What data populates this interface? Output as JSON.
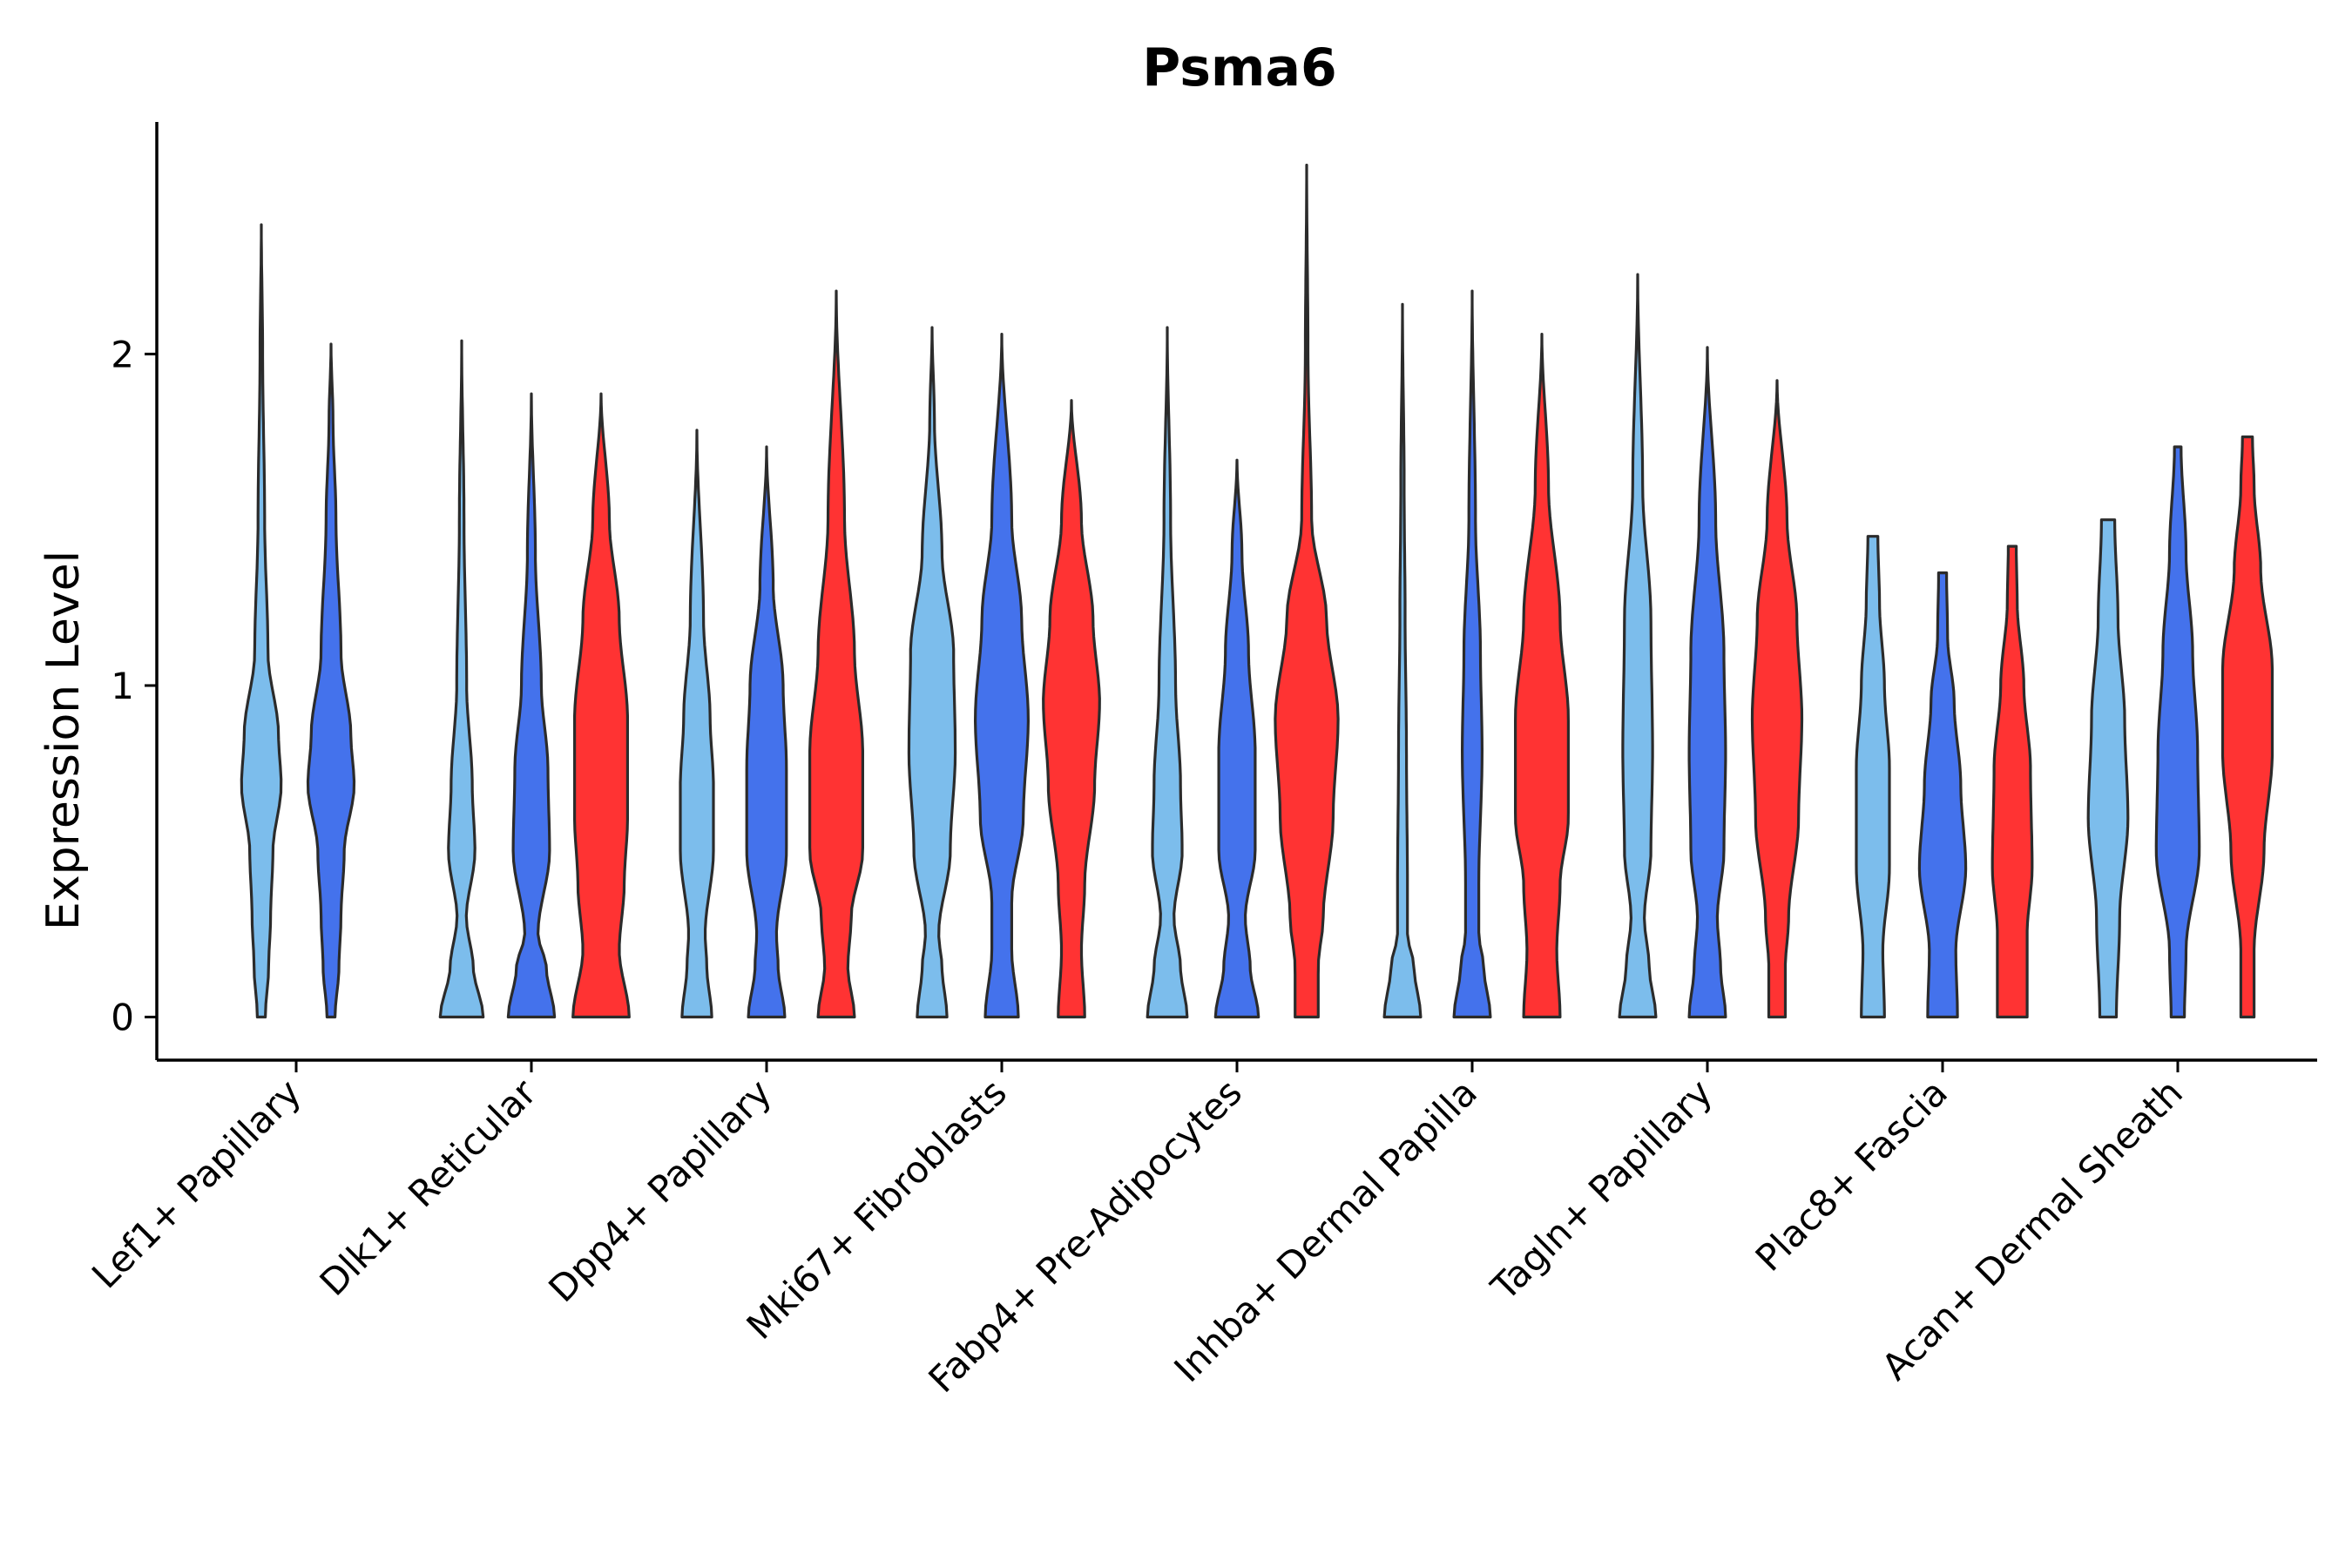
{
  "chart_data": {
    "type": "violin",
    "title": "Psma6",
    "xlabel": "",
    "ylabel": "Expression Level",
    "ylim": [
      -0.13,
      2.7
    ],
    "yticks": [
      0,
      1,
      2
    ],
    "colors": {
      "light_blue": "#7CBDEC",
      "blue": "#4472EC",
      "red": "#FF3333",
      "outline": "#2b2b2b"
    },
    "categories": [
      "Lef1+ Papillary",
      "Dlk1+ Reticular",
      "Dpp4+ Papillary",
      "Mki67+ Fibroblasts",
      "Fabp4+ Pre-Adipocytes",
      "Inhba+ Dermal Papilla",
      "Tagln+ Papillary",
      "Plac8+ Fascia",
      "Acan+ Dermal Sheath"
    ],
    "violins": [
      {
        "category": "Lef1+ Papillary",
        "color": "light_blue",
        "max": 2.39,
        "profile": [
          [
            0,
            0.12
          ],
          [
            0.15,
            0.22
          ],
          [
            0.3,
            0.28
          ],
          [
            0.5,
            0.35
          ],
          [
            0.7,
            0.6
          ],
          [
            0.85,
            0.52
          ],
          [
            1.1,
            0.2
          ],
          [
            1.5,
            0.1
          ],
          [
            2.0,
            0.04
          ],
          [
            2.39,
            0.0
          ]
        ]
      },
      {
        "category": "Lef1+ Papillary",
        "color": "blue",
        "max": 2.03,
        "profile": [
          [
            0,
            0.12
          ],
          [
            0.15,
            0.24
          ],
          [
            0.3,
            0.3
          ],
          [
            0.5,
            0.4
          ],
          [
            0.7,
            0.7
          ],
          [
            0.85,
            0.6
          ],
          [
            1.1,
            0.3
          ],
          [
            1.5,
            0.15
          ],
          [
            1.8,
            0.06
          ],
          [
            2.03,
            0.0
          ]
        ]
      },
      {
        "category": "Dlk1+ Reticular",
        "color": "light_blue",
        "max": 2.04,
        "profile": [
          [
            0,
            0.65
          ],
          [
            0.15,
            0.35
          ],
          [
            0.3,
            0.14
          ],
          [
            0.5,
            0.4
          ],
          [
            0.7,
            0.32
          ],
          [
            1.0,
            0.15
          ],
          [
            1.5,
            0.07
          ],
          [
            2.04,
            0.0
          ]
        ]
      },
      {
        "category": "Dlk1+ Reticular",
        "color": "blue",
        "max": 1.88,
        "profile": [
          [
            0,
            0.7
          ],
          [
            0.15,
            0.45
          ],
          [
            0.25,
            0.2
          ],
          [
            0.5,
            0.55
          ],
          [
            0.75,
            0.5
          ],
          [
            1.0,
            0.3
          ],
          [
            1.4,
            0.12
          ],
          [
            1.88,
            0.0
          ]
        ]
      },
      {
        "category": "Dlk1+ Reticular",
        "color": "red",
        "max": 1.88,
        "profile": [
          [
            0,
            0.85
          ],
          [
            0.2,
            0.55
          ],
          [
            0.4,
            0.7
          ],
          [
            0.6,
            0.8
          ],
          [
            0.9,
            0.8
          ],
          [
            1.2,
            0.55
          ],
          [
            1.5,
            0.25
          ],
          [
            1.88,
            0.0
          ]
        ]
      },
      {
        "category": "Dpp4+ Papillary",
        "color": "light_blue",
        "max": 1.77,
        "profile": [
          [
            0,
            0.45
          ],
          [
            0.15,
            0.3
          ],
          [
            0.25,
            0.25
          ],
          [
            0.5,
            0.5
          ],
          [
            0.7,
            0.5
          ],
          [
            0.9,
            0.4
          ],
          [
            1.2,
            0.2
          ],
          [
            1.77,
            0.0
          ]
        ]
      },
      {
        "category": "Dpp4+ Papillary",
        "color": "blue",
        "max": 1.72,
        "profile": [
          [
            0,
            0.55
          ],
          [
            0.15,
            0.35
          ],
          [
            0.25,
            0.3
          ],
          [
            0.5,
            0.6
          ],
          [
            0.75,
            0.6
          ],
          [
            1.0,
            0.5
          ],
          [
            1.3,
            0.2
          ],
          [
            1.72,
            0.0
          ]
        ]
      },
      {
        "category": "Dpp4+ Papillary",
        "color": "red",
        "max": 2.19,
        "profile": [
          [
            0,
            0.55
          ],
          [
            0.15,
            0.35
          ],
          [
            0.3,
            0.45
          ],
          [
            0.5,
            0.8
          ],
          [
            0.8,
            0.8
          ],
          [
            1.1,
            0.55
          ],
          [
            1.5,
            0.25
          ],
          [
            2.19,
            0.0
          ]
        ]
      },
      {
        "category": "Mki67+ Fibroblasts",
        "color": "light_blue",
        "max": 2.08,
        "profile": [
          [
            0,
            0.45
          ],
          [
            0.15,
            0.3
          ],
          [
            0.25,
            0.2
          ],
          [
            0.5,
            0.55
          ],
          [
            0.8,
            0.7
          ],
          [
            1.1,
            0.65
          ],
          [
            1.4,
            0.3
          ],
          [
            1.8,
            0.07
          ],
          [
            2.08,
            0.0
          ]
        ]
      },
      {
        "category": "Mki67+ Fibroblasts",
        "color": "blue",
        "max": 2.06,
        "profile": [
          [
            0,
            0.5
          ],
          [
            0.2,
            0.3
          ],
          [
            0.35,
            0.3
          ],
          [
            0.6,
            0.65
          ],
          [
            0.9,
            0.8
          ],
          [
            1.2,
            0.6
          ],
          [
            1.5,
            0.3
          ],
          [
            2.06,
            0.0
          ]
        ]
      },
      {
        "category": "Mki67+ Fibroblasts",
        "color": "red",
        "max": 1.86,
        "profile": [
          [
            0,
            0.4
          ],
          [
            0.2,
            0.3
          ],
          [
            0.4,
            0.4
          ],
          [
            0.7,
            0.7
          ],
          [
            0.95,
            0.85
          ],
          [
            1.2,
            0.65
          ],
          [
            1.5,
            0.3
          ],
          [
            1.86,
            0.0
          ]
        ]
      },
      {
        "category": "Fabp4+ Pre-Adipocytes",
        "color": "light_blue",
        "max": 2.08,
        "profile": [
          [
            0,
            0.6
          ],
          [
            0.15,
            0.4
          ],
          [
            0.3,
            0.2
          ],
          [
            0.5,
            0.45
          ],
          [
            0.7,
            0.4
          ],
          [
            1.0,
            0.25
          ],
          [
            1.5,
            0.1
          ],
          [
            2.08,
            0.0
          ]
        ]
      },
      {
        "category": "Fabp4+ Pre-Adipocytes",
        "color": "blue",
        "max": 1.68,
        "profile": [
          [
            0,
            0.65
          ],
          [
            0.15,
            0.4
          ],
          [
            0.3,
            0.25
          ],
          [
            0.5,
            0.55
          ],
          [
            0.8,
            0.55
          ],
          [
            1.1,
            0.35
          ],
          [
            1.4,
            0.15
          ],
          [
            1.68,
            0.0
          ]
        ]
      },
      {
        "category": "Fabp4+ Pre-Adipocytes",
        "color": "red",
        "max": 2.57,
        "profile": [
          [
            0,
            0.35
          ],
          [
            0.15,
            0.35
          ],
          [
            0.3,
            0.5
          ],
          [
            0.6,
            0.8
          ],
          [
            0.9,
            0.95
          ],
          [
            1.2,
            0.6
          ],
          [
            1.5,
            0.15
          ],
          [
            2.0,
            0.04
          ],
          [
            2.57,
            0.0
          ]
        ]
      },
      {
        "category": "Inhba+ Dermal Papilla",
        "color": "light_blue",
        "max": 2.15,
        "profile": [
          [
            0,
            0.55
          ],
          [
            0.15,
            0.35
          ],
          [
            0.25,
            0.15
          ],
          [
            0.4,
            0.15
          ],
          [
            0.8,
            0.12
          ],
          [
            1.2,
            0.08
          ],
          [
            1.6,
            0.05
          ],
          [
            2.15,
            0.0
          ]
        ]
      },
      {
        "category": "Inhba+ Dermal Papilla",
        "color": "blue",
        "max": 2.19,
        "profile": [
          [
            0,
            0.55
          ],
          [
            0.15,
            0.35
          ],
          [
            0.25,
            0.2
          ],
          [
            0.4,
            0.2
          ],
          [
            0.8,
            0.3
          ],
          [
            1.1,
            0.25
          ],
          [
            1.5,
            0.1
          ],
          [
            2.19,
            0.0
          ]
        ]
      },
      {
        "category": "Inhba+ Dermal Papilla",
        "color": "red",
        "max": 2.06,
        "profile": [
          [
            0,
            0.55
          ],
          [
            0.2,
            0.45
          ],
          [
            0.4,
            0.55
          ],
          [
            0.6,
            0.8
          ],
          [
            0.9,
            0.8
          ],
          [
            1.2,
            0.55
          ],
          [
            1.6,
            0.2
          ],
          [
            2.06,
            0.0
          ]
        ]
      },
      {
        "category": "Tagln+ Papillary",
        "color": "light_blue",
        "max": 2.24,
        "profile": [
          [
            0,
            0.55
          ],
          [
            0.15,
            0.35
          ],
          [
            0.3,
            0.2
          ],
          [
            0.5,
            0.4
          ],
          [
            0.8,
            0.45
          ],
          [
            1.2,
            0.4
          ],
          [
            1.6,
            0.15
          ],
          [
            2.24,
            0.0
          ]
        ]
      },
      {
        "category": "Tagln+ Papillary",
        "color": "blue",
        "max": 2.02,
        "profile": [
          [
            0,
            0.55
          ],
          [
            0.15,
            0.4
          ],
          [
            0.3,
            0.3
          ],
          [
            0.5,
            0.5
          ],
          [
            0.8,
            0.55
          ],
          [
            1.1,
            0.5
          ],
          [
            1.5,
            0.25
          ],
          [
            2.02,
            0.0
          ]
        ]
      },
      {
        "category": "Tagln+ Papillary",
        "color": "red",
        "max": 1.92,
        "profile": [
          [
            0,
            0.25
          ],
          [
            0.15,
            0.25
          ],
          [
            0.3,
            0.35
          ],
          [
            0.6,
            0.65
          ],
          [
            0.9,
            0.75
          ],
          [
            1.2,
            0.6
          ],
          [
            1.5,
            0.3
          ],
          [
            1.92,
            0.0
          ]
        ]
      },
      {
        "category": "Plac8+ Fascia",
        "color": "light_blue",
        "max": 1.45,
        "profile": [
          [
            0,
            0.35
          ],
          [
            0.2,
            0.3
          ],
          [
            0.45,
            0.5
          ],
          [
            0.75,
            0.5
          ],
          [
            1.0,
            0.35
          ],
          [
            1.25,
            0.2
          ],
          [
            1.45,
            0.15
          ]
        ]
      },
      {
        "category": "Plac8+ Fascia",
        "color": "blue",
        "max": 1.34,
        "profile": [
          [
            0,
            0.45
          ],
          [
            0.2,
            0.4
          ],
          [
            0.45,
            0.7
          ],
          [
            0.7,
            0.55
          ],
          [
            0.95,
            0.35
          ],
          [
            1.15,
            0.15
          ],
          [
            1.34,
            0.12
          ]
        ]
      },
      {
        "category": "Plac8+ Fascia",
        "color": "red",
        "max": 1.42,
        "profile": [
          [
            0,
            0.45
          ],
          [
            0.25,
            0.45
          ],
          [
            0.45,
            0.6
          ],
          [
            0.75,
            0.55
          ],
          [
            1.0,
            0.35
          ],
          [
            1.25,
            0.15
          ],
          [
            1.42,
            0.12
          ]
        ]
      },
      {
        "category": "Acan+ Dermal Sheath",
        "color": "light_blue",
        "max": 1.5,
        "profile": [
          [
            0,
            0.25
          ],
          [
            0.3,
            0.35
          ],
          [
            0.6,
            0.6
          ],
          [
            0.9,
            0.5
          ],
          [
            1.2,
            0.3
          ],
          [
            1.5,
            0.2
          ]
        ]
      },
      {
        "category": "Acan+ Dermal Sheath",
        "color": "blue",
        "max": 1.72,
        "profile": [
          [
            0,
            0.2
          ],
          [
            0.2,
            0.25
          ],
          [
            0.5,
            0.65
          ],
          [
            0.8,
            0.6
          ],
          [
            1.1,
            0.45
          ],
          [
            1.4,
            0.25
          ],
          [
            1.72,
            0.1
          ]
        ]
      },
      {
        "category": "Acan+ Dermal Sheath",
        "color": "red",
        "max": 1.75,
        "profile": [
          [
            0,
            0.2
          ],
          [
            0.2,
            0.2
          ],
          [
            0.5,
            0.5
          ],
          [
            0.8,
            0.75
          ],
          [
            1.05,
            0.75
          ],
          [
            1.35,
            0.4
          ],
          [
            1.6,
            0.2
          ],
          [
            1.75,
            0.15
          ]
        ]
      }
    ]
  }
}
